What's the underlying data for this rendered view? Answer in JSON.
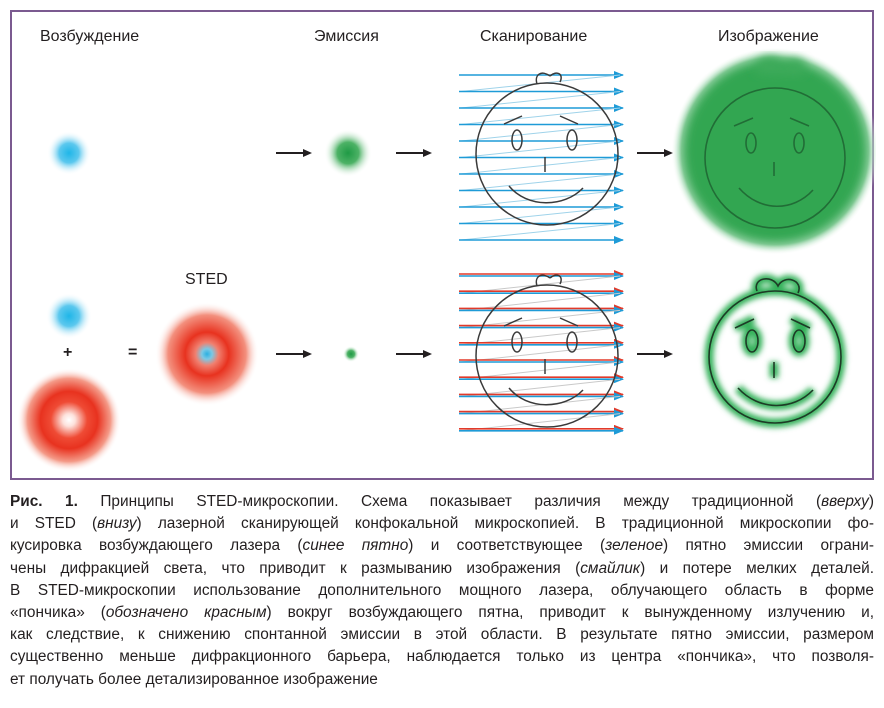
{
  "figure": {
    "headers": {
      "excitation": "Возбуждение",
      "emission": "Эмиссия",
      "scanning": "Сканирование",
      "image": "Изображение"
    },
    "sted_label": "STED",
    "plus": "+",
    "equals": "="
  },
  "caption": {
    "fig_label": "Рис. 1.",
    "l1_a": " Принципы STED-микроскопии. Схема показывает различия между традиционной (",
    "l1_i": "вверху",
    "l1_b": ")",
    "l2_a": "и STED (",
    "l2_i": "внизу",
    "l2_b": ") лазерной сканирующей конфокальной микроскопией. В традиционной микроскопии фо-",
    "l3_a": "кусировка возбуждающего лазера (",
    "l3_i1": "синее пятно",
    "l3_b": ") и соответствующее (",
    "l3_i2": "зеленое",
    "l3_c": ") пятно эмиссии ограни-",
    "l4_a": "чены дифракцией света, что приводит к размыванию изображения (",
    "l4_i": "смайлик",
    "l4_b": ") и потере мелких деталей.",
    "l5": "В STED-микроскопии использование дополнительного мощного лазера, облучающего область в форме",
    "l6_a": "«пончика» (",
    "l6_i": "обозначено красным",
    "l6_b": ") вокруг возбуждающего пятна, приводит к вынужденному излучению и,",
    "l7": "как следствие, к снижению спонтанной эмиссии в этой области. В результате пятно эмиссии, размером",
    "l8": "существенно меньше дифракционного барьера, наблюдается только из центра «пончика», что позволя-",
    "l9": "ет получать более детализированное изображение"
  }
}
